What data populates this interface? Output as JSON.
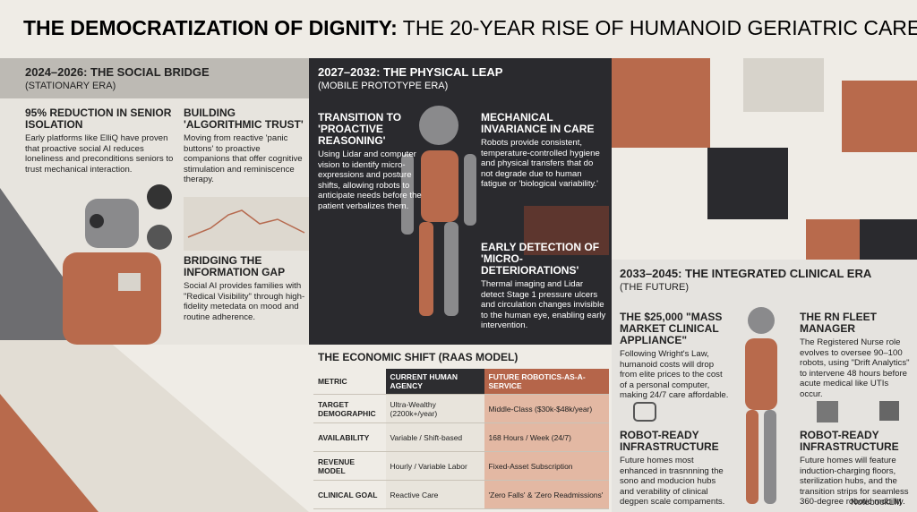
{
  "header": {
    "title_bold": "THE DEMOCRATIZATION OF DIGNITY:",
    "title_rest": "THE 20-YEAR RISE OF HUMANOID GERIATRIC CARE"
  },
  "sections": [
    {
      "title": "2024–2026: THE SOCIAL BRIDGE",
      "subtitle": "(STATIONARY ERA)",
      "blocks": [
        {
          "heading": "95% REDUCTION IN SENIOR ISOLATION",
          "text": "Early platforms like ElliQ have proven that proactive social AI reduces loneliness and preconditions seniors to trust mechanical interaction."
        },
        {
          "heading": "BUILDING 'ALGORITHMIC TRUST'",
          "text": "Moving from reactive 'panic buttons' to proactive companions that offer cognitive stimulation and reminiscence therapy."
        },
        {
          "heading": "BRIDGING THE INFORMATION GAP",
          "text": "Social AI provides families with \"Redical Visibility\" through high-fidelity metedata on mood and routine adherence."
        }
      ]
    },
    {
      "title": "2027–2032: THE PHYSICAL LEAP",
      "subtitle": "(MOBILE PROTOTYPE ERA)",
      "blocks": [
        {
          "heading": "TRANSITION TO 'PROACTIVE REASONING'",
          "text": "Using Lidar and computer vision to identify micro-expressions and posture shifts, allowing robots to anticipate needs before the patient verbalizes them."
        },
        {
          "heading": "MECHANICAL INVARIANCE IN CARE",
          "text": "Robots provide consistent, temperature-controlled hygiene and physical transfers that do not degrade due to human fatigue or 'biological variability.'"
        },
        {
          "heading": "EARLY DETECTION OF 'MICRO-DETERIORATIONS'",
          "text": "Thermal imaging and Lidar detect Stage 1 pressure ulcers and circulation changes invisible to the human eye, enabling early intervention."
        }
      ]
    },
    {
      "title": "2033–2045: THE INTEGRATED CLINICAL ERA",
      "subtitle": "(THE FUTURE)",
      "blocks": [
        {
          "heading": "THE $25,000 \"MASS MARKET CLINICAL APPLIANCE\"",
          "text": "Following Wright's Law, humanoid costs will drop from elite prices to the cost of a personal computer, making 24/7 care affordable."
        },
        {
          "heading": "THE RN FLEET MANAGER",
          "text": "The Registered Nurse role evolves to oversee 90–100 robots, using \"Drift Analytics\" to intervene 48 hours before acute medical like UTIs occur."
        },
        {
          "heading": "ROBOT-READY INFRASTRUCTURE",
          "text": "Future homes most enhanced in trasnnning the sono and moducion hubs and verability of clinical degpen scale compaments."
        },
        {
          "heading": "ROBOT-READY INFRASTRUCTURE",
          "text": "Future homes will feature induction-charging floors, sterilization hubs, and the transition strips for seamless 360-degree robotic mobility."
        }
      ]
    }
  ],
  "table": {
    "title": "THE ECONOMIC SHIFT (RAAS MODEL)",
    "header": [
      "METRIC",
      "CURRENT HUMAN AGENCY",
      "FUTURE ROBOTICS-AS-A-SERVICE"
    ],
    "rows": [
      [
        "TARGET DEMOGRAPHIC",
        "Ultra-Wealthy (2200k+/year)",
        "Middle-Class ($30k-$48k/year)"
      ],
      [
        "AVAILABILITY",
        "Variable / Shift-based",
        "168 Hours / Week (24/7)"
      ],
      [
        "REVENUE MODEL",
        "Hourly / Variable Labor",
        "Fixed-Asset Subscription"
      ],
      [
        "CLINICAL GOAL",
        "Reactive Care",
        "'Zero Falls' & 'Zero Readmissions'"
      ]
    ]
  },
  "footer": "NotebookLM"
}
